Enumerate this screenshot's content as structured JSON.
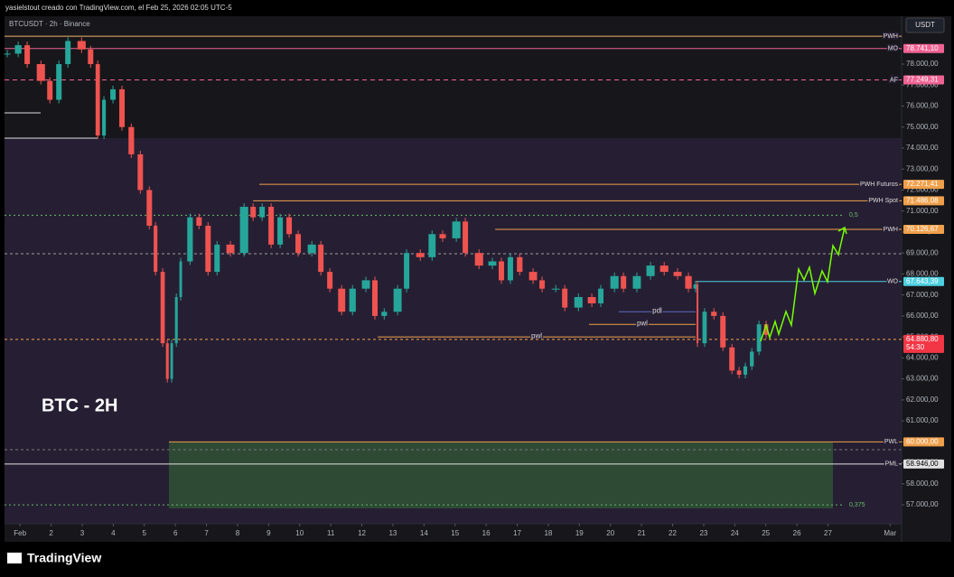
{
  "header": {
    "caption": "yasielstout creado con TradingView.com, el Feb 25, 2026 02:05 UTC-5",
    "symbol": "BTCUSDT · 2h · Binance",
    "currency": "USDT",
    "annotation": "BTC - 2H",
    "logo": "TradingView"
  },
  "chart_data": {
    "type": "candlestick",
    "x": [
      0.59,
      0.94,
      1.23,
      1.67,
      1.96,
      2.25,
      2.54,
      2.98,
      3.27,
      3.5,
      3.7,
      3.99,
      4.28,
      4.58,
      4.87,
      5.16,
      5.36,
      5.59,
      5.74,
      5.88,
      6.03,
      6.17,
      6.47,
      6.76,
      7.05,
      7.34,
      7.77,
      8.21,
      8.5,
      8.79,
      9.08,
      9.37,
      9.66,
      9.95,
      10.39,
      10.68,
      10.97,
      11.35,
      11.7,
      12.13,
      12.42,
      12.72,
      13.15,
      13.44,
      13.88,
      14.26,
      14.6,
      15.04,
      15.33,
      15.77,
      16.2,
      16.49,
      16.78,
      17.08,
      17.51,
      17.8,
      18.24,
      18.53,
      18.97,
      19.4,
      19.69,
      20.13,
      20.42,
      20.85,
      21.29,
      21.73,
      22.16,
      22.51,
      22.74,
      22.8,
      23.03,
      23.33,
      23.62,
      23.91,
      24.14,
      24.34,
      24.55,
      24.78,
      25.01
    ],
    "values": [
      78500,
      78900,
      78000,
      77200,
      76300,
      78000,
      79100,
      78700,
      78000,
      74600,
      76300,
      76800,
      75000,
      73700,
      72000,
      70300,
      68100,
      64700,
      63000,
      64700,
      66900,
      68600,
      70700,
      70300,
      68100,
      69400,
      69000,
      71200,
      70700,
      71200,
      69400,
      70700,
      69900,
      69000,
      69400,
      68100,
      67300,
      66200,
      67300,
      67700,
      66000,
      66200,
      67300,
      69000,
      68800,
      69900,
      69700,
      70500,
      69000,
      68400,
      68600,
      67700,
      68800,
      68100,
      67700,
      67300,
      67300,
      66400,
      66900,
      66600,
      67300,
      67900,
      67300,
      67900,
      68400,
      68100,
      67900,
      67300,
      67500,
      64700,
      66200,
      66000,
      64500,
      63400,
      63200,
      63600,
      64300,
      65600,
      65100
    ],
    "up_color": "#26a69a",
    "down_color": "#ef5350",
    "xlim": [
      0.5,
      29.37
    ],
    "ylim": [
      56100,
      80280
    ],
    "xticks": [
      {
        "value": 1,
        "label": "Feb"
      },
      2,
      3,
      4,
      5,
      6,
      7,
      8,
      9,
      10,
      11,
      12,
      13,
      14,
      15,
      16,
      17,
      18,
      19,
      20,
      21,
      22,
      23,
      24,
      25,
      26,
      27,
      {
        "value": 29,
        "label": "Mar"
      }
    ],
    "yticks": [
      {
        "value": 57000,
        "label": "57.000,00"
      },
      {
        "value": 58000,
        "label": "58.000,00"
      },
      {
        "value": 59000,
        "label": "59.000,00"
      },
      {
        "value": 60000,
        "label": "60.000,00"
      },
      {
        "value": 61000,
        "label": "61.000,00"
      },
      {
        "value": 62000,
        "label": "62.000,00"
      },
      {
        "value": 63000,
        "label": "63.000,00"
      },
      {
        "value": 64000,
        "label": "64.000,00"
      },
      {
        "value": 65000,
        "label": "65.000,00"
      },
      {
        "value": 66000,
        "label": "66.000,00"
      },
      {
        "value": 67000,
        "label": "67.000,00"
      },
      {
        "value": 68000,
        "label": "68.000,00"
      },
      {
        "value": 69000,
        "label": "69.000,00"
      },
      {
        "value": 70000,
        "label": "70.000,00"
      },
      {
        "value": 71000,
        "label": "71.000,00"
      },
      {
        "value": 72000,
        "label": "72.000,00"
      },
      {
        "value": 73000,
        "label": "73.000,00"
      },
      {
        "value": 74000,
        "label": "74.000,00"
      },
      {
        "value": 75000,
        "label": "75.000,00"
      },
      {
        "value": 76000,
        "label": "76.000,00"
      },
      {
        "value": 77000,
        "label": "77.000,00"
      },
      {
        "value": 78000,
        "label": "78.000,00"
      }
    ],
    "levels": [
      {
        "name": "PWH",
        "value": 79330,
        "color": "#f0b36b",
        "style": "solid",
        "start": 0.5
      },
      {
        "name": "MO",
        "value": 78741.1,
        "value_label": "78.741,10",
        "color": "#f06292",
        "style": "solid",
        "start": 0.5
      },
      {
        "name": "AF",
        "value": 77249.31,
        "value_label": "77.249,31",
        "color": "#f06292",
        "style": "dashed",
        "start": 0.5
      },
      {
        "name": "PWH Futuros",
        "value": 72271.41,
        "value_label": "72.271,41",
        "color": "#f0a04b",
        "style": "solid",
        "start": 8.7
      },
      {
        "name": "PWH Spot",
        "value": 71486.08,
        "value_label": "71.486,08",
        "color": "#f0a04b",
        "style": "solid",
        "start": 8.5
      },
      {
        "name": "0,5",
        "value": 70800,
        "color": "#66bb6a",
        "style": "fib",
        "start": 0.5
      },
      {
        "name": "PWH",
        "value": 70126.67,
        "value_label": "70.126,67",
        "color": "#f0a04b",
        "style": "solid",
        "start": 16.29
      },
      {
        "name": "WO",
        "value": 67643.39,
        "value_label": "67.643,39",
        "color": "#4dd0e1",
        "style": "solid",
        "start": 22.74
      },
      {
        "value": 64880.8,
        "value_label": "64.880,80",
        "countdown": "54:30",
        "color": "#f23645",
        "style": "price",
        "start": 0.5
      },
      {
        "name": "PWL",
        "value": 60000,
        "value_label": "60.000,00",
        "color": "#f0a04b",
        "style": "solid",
        "start": 5.79
      },
      {
        "name": "PML",
        "value": 58946,
        "value_label": "58.946,00",
        "color": "#e0e0e0",
        "style": "solid",
        "start": 0.5
      },
      {
        "name": "0,375",
        "value": 57000,
        "color": "#66bb6a",
        "style": "fib",
        "start": 0.5
      }
    ],
    "guides": [
      {
        "name": "pdl",
        "value": 66200,
        "x": [
          20.27,
          22.74
        ],
        "color": "#5c6bc0"
      },
      {
        "name": "pwl",
        "value": 65600,
        "x": [
          19.31,
          22.74
        ],
        "color": "#f0a04b"
      },
      {
        "name": "pwl",
        "value": 65000,
        "x": [
          12.51,
          22.74
        ],
        "color": "#f0a04b"
      }
    ]
  }
}
